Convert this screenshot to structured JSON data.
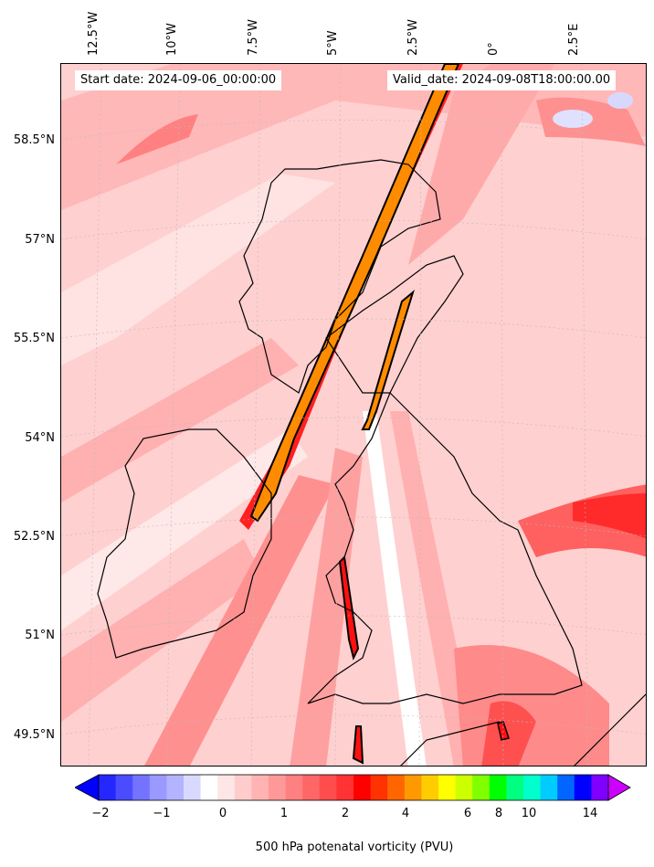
{
  "map": {
    "start_date": "Start date: 2024-09-06_00:00:00",
    "valid_date": "Valid_date: 2024-09-08T18:00:00.00",
    "longitude_labels": [
      "12.5°W",
      "10°W",
      "7.5°W",
      "5°W",
      "2.5°W",
      "0°",
      "2.5°E"
    ],
    "latitude_labels": [
      "58.5°N",
      "57°N",
      "55.5°N",
      "54°N",
      "52.5°N",
      "51°N",
      "49.5°N"
    ],
    "variable": "500 hPa potential vorticity",
    "colors": {
      "background_field": "#ffd6d6",
      "high_pv": "#ff0000",
      "very_high_pv": "#ff8c00",
      "coastline": "#000000"
    }
  },
  "colorbar": {
    "title": "500 hPa potenatal vorticity (PVU)",
    "tick_labels": [
      "−2",
      "−1",
      "0",
      "1",
      "2",
      "4",
      "6",
      "8",
      "10",
      "14"
    ],
    "colors": [
      "#0000ff",
      "#2626ff",
      "#4c4cff",
      "#7373ff",
      "#9999ff",
      "#b3b3ff",
      "#d9d9ff",
      "#ffffff",
      "#ffe6e6",
      "#ffcccc",
      "#ffb3b3",
      "#ff9999",
      "#ff8080",
      "#ff6666",
      "#ff4d4d",
      "#ff3333",
      "#ff0000",
      "#ff3300",
      "#ff6600",
      "#ff9900",
      "#ffcc00",
      "#ffff00",
      "#ccff00",
      "#80ff00",
      "#00ff00",
      "#00ff80",
      "#00ffcc",
      "#00ccff",
      "#0066ff",
      "#0000ff",
      "#8000ff",
      "#cc00ff"
    ]
  }
}
